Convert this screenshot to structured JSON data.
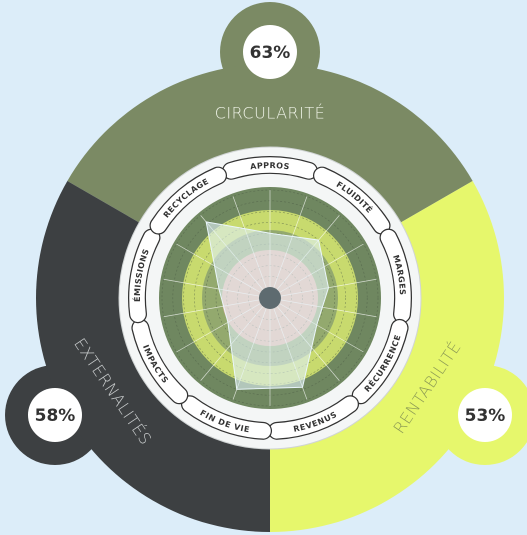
{
  "chart_data": {
    "type": "radar",
    "pillars": [
      {
        "name": "CIRCULARITÉ",
        "color": "#7b8a64",
        "value": 63,
        "value_label": "63%"
      },
      {
        "name": "RENTABILITÉ",
        "color": "#e6f76c",
        "value": 53,
        "value_label": "53%"
      },
      {
        "name": "EXTERNALITÉS",
        "color": "#3d4042",
        "value": 58,
        "value_label": "58%"
      }
    ],
    "categories": [
      "APPROS",
      "FLUIDITÉ",
      "MARGES",
      "RÉCURRENCE",
      "REVENUS",
      "FIN DE VIE",
      "IMPACTS",
      "ÉMISSIONS",
      "RECYCLAGE"
    ],
    "values": [
      60,
      70,
      55,
      50,
      88,
      90,
      45,
      48,
      92
    ],
    "color": "#dff0f7",
    "rlim": [
      0,
      100
    ]
  }
}
